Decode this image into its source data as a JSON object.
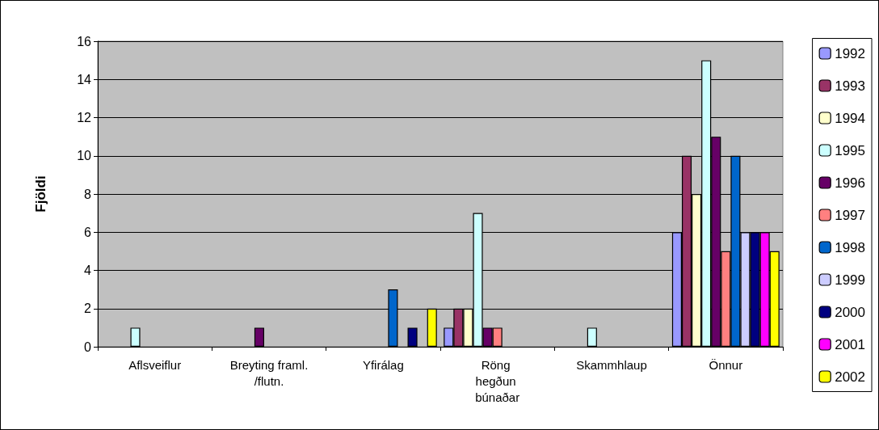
{
  "chart_data": {
    "type": "bar",
    "ylabel": "Fjöldi",
    "categories": [
      "Aflsveiflur",
      "Breyting framl./flutn.",
      "Yfirálag",
      "Röng hegðun búnaðar",
      "Skammhlaup",
      "Önnur"
    ],
    "series": [
      {
        "name": "1992",
        "color": "#9999ff",
        "values": [
          0,
          0,
          0,
          1,
          0,
          6
        ]
      },
      {
        "name": "1993",
        "color": "#993366",
        "values": [
          0,
          0,
          0,
          2,
          0,
          10
        ]
      },
      {
        "name": "1994",
        "color": "#ffffcc",
        "values": [
          0,
          0,
          0,
          2,
          0,
          8
        ]
      },
      {
        "name": "1995",
        "color": "#ccffff",
        "values": [
          1,
          0,
          0,
          7,
          1,
          15
        ]
      },
      {
        "name": "1996",
        "color": "#660066",
        "values": [
          0,
          1,
          0,
          1,
          0,
          11
        ]
      },
      {
        "name": "1997",
        "color": "#ff8080",
        "values": [
          0,
          0,
          0,
          1,
          0,
          5
        ]
      },
      {
        "name": "1998",
        "color": "#0066cc",
        "values": [
          0,
          0,
          3,
          0,
          0,
          10
        ]
      },
      {
        "name": "1999",
        "color": "#ccccff",
        "values": [
          0,
          0,
          0,
          0,
          0,
          6
        ]
      },
      {
        "name": "2000",
        "color": "#000080",
        "values": [
          0,
          0,
          1,
          0,
          0,
          6
        ]
      },
      {
        "name": "2001",
        "color": "#ff00ff",
        "values": [
          0,
          0,
          0,
          0,
          0,
          6
        ]
      },
      {
        "name": "2002",
        "color": "#ffff00",
        "values": [
          0,
          0,
          2,
          0,
          0,
          5
        ]
      }
    ],
    "ylim": [
      0,
      16
    ],
    "yticks": [
      0,
      2,
      4,
      6,
      8,
      10,
      12,
      14,
      16
    ],
    "grid": "y",
    "legend": "right"
  }
}
